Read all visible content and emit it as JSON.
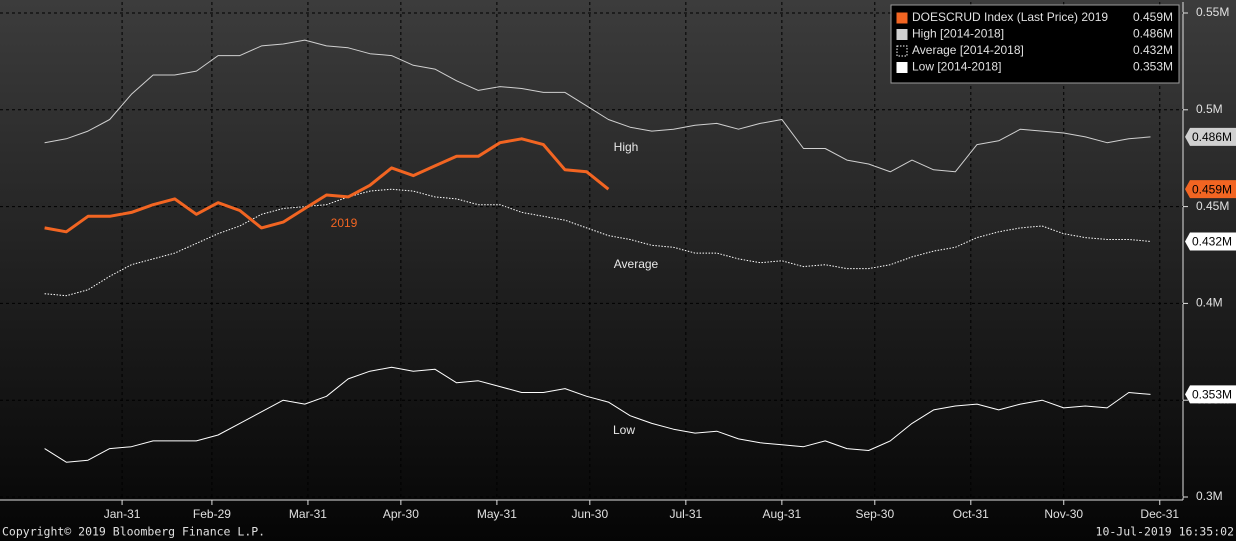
{
  "chart_data": {
    "type": "line",
    "x": [
      6,
      13,
      20,
      27,
      34,
      41,
      48,
      55,
      62,
      69,
      76,
      83,
      90,
      97,
      104,
      111,
      118,
      125,
      132,
      139,
      146,
      153,
      160,
      167,
      174,
      181,
      188,
      195,
      202,
      209,
      216,
      223,
      230,
      237,
      244,
      251,
      258,
      265,
      272,
      279,
      286,
      293,
      300,
      307,
      314,
      321,
      328,
      335,
      342,
      349,
      356,
      363
    ],
    "xlim": [
      4.5,
      373.5
    ],
    "xticks": [
      {
        "value": 31,
        "label": "Jan-31"
      },
      {
        "value": 60,
        "label": "Feb-29"
      },
      {
        "value": 91,
        "label": "Mar-31"
      },
      {
        "value": 121,
        "label": "Apr-30"
      },
      {
        "value": 152,
        "label": "May-31"
      },
      {
        "value": 182,
        "label": "Jun-30"
      },
      {
        "value": 213,
        "label": "Jul-31"
      },
      {
        "value": 244,
        "label": "Aug-31"
      },
      {
        "value": 274,
        "label": "Sep-30"
      },
      {
        "value": 305,
        "label": "Oct-31"
      },
      {
        "value": 335,
        "label": "Nov-30"
      },
      {
        "value": 366,
        "label": "Dec-31"
      }
    ],
    "ylim": [
      0.3,
      0.55
    ],
    "yticks": [
      {
        "value": 0.3,
        "label": "0.3M"
      },
      {
        "value": 0.35,
        "label": "0.35M"
      },
      {
        "value": 0.4,
        "label": "0.4M"
      },
      {
        "value": 0.45,
        "label": "0.45M"
      },
      {
        "value": 0.5,
        "label": "0.5M"
      },
      {
        "value": 0.55,
        "label": "0.55M"
      }
    ],
    "grid": true,
    "legend": "upper right",
    "series": [
      {
        "name": "DOESCRUD Index (Last Price) 2019",
        "color": "#f26522",
        "style": "solid",
        "last_label": "0.459M",
        "values": [
          0.439,
          0.437,
          0.445,
          0.445,
          0.447,
          0.451,
          0.454,
          0.446,
          0.452,
          0.448,
          0.439,
          0.442,
          0.449,
          0.456,
          0.455,
          0.461,
          0.47,
          0.466,
          0.471,
          0.476,
          0.476,
          0.483,
          0.485,
          0.482,
          0.469,
          0.468,
          0.459,
          null,
          null,
          null,
          null,
          null,
          null,
          null,
          null,
          null,
          null,
          null,
          null,
          null,
          null,
          null,
          null,
          null,
          null,
          null,
          null,
          null,
          null,
          null,
          null,
          null
        ]
      },
      {
        "name": "High [2014-2018]",
        "color": "#d0d0d0",
        "style": "solid",
        "last_label": "0.486M",
        "values": [
          0.483,
          0.485,
          0.489,
          0.495,
          0.508,
          0.518,
          0.518,
          0.52,
          0.528,
          0.528,
          0.533,
          0.534,
          0.536,
          0.533,
          0.532,
          0.529,
          0.528,
          0.523,
          0.521,
          0.515,
          0.51,
          0.512,
          0.511,
          0.509,
          0.509,
          0.502,
          0.495,
          0.491,
          0.489,
          0.49,
          0.492,
          0.493,
          0.49,
          0.493,
          0.495,
          0.48,
          0.48,
          0.474,
          0.472,
          0.468,
          0.474,
          0.469,
          0.468,
          0.482,
          0.484,
          0.49,
          0.489,
          0.488,
          0.486,
          0.483,
          0.485,
          0.486
        ]
      },
      {
        "name": "Average [2014-2018]",
        "color": "#ffffff",
        "style": "dotted",
        "last_label": "0.432M",
        "values": [
          0.405,
          0.404,
          0.407,
          0.414,
          0.42,
          0.423,
          0.426,
          0.431,
          0.436,
          0.44,
          0.446,
          0.449,
          0.45,
          0.451,
          0.455,
          0.458,
          0.459,
          0.458,
          0.455,
          0.454,
          0.451,
          0.451,
          0.447,
          0.445,
          0.443,
          0.439,
          0.435,
          0.433,
          0.43,
          0.429,
          0.426,
          0.426,
          0.423,
          0.421,
          0.422,
          0.419,
          0.42,
          0.418,
          0.418,
          0.42,
          0.424,
          0.427,
          0.429,
          0.434,
          0.437,
          0.439,
          0.44,
          0.436,
          0.434,
          0.433,
          0.433,
          0.432
        ]
      },
      {
        "name": "Low [2014-2018]",
        "color": "#ffffff",
        "style": "solid",
        "last_label": "0.353M",
        "values": [
          0.325,
          0.318,
          0.319,
          0.325,
          0.326,
          0.329,
          0.329,
          0.329,
          0.332,
          0.338,
          0.344,
          0.35,
          0.348,
          0.352,
          0.361,
          0.365,
          0.367,
          0.365,
          0.366,
          0.359,
          0.36,
          0.357,
          0.354,
          0.354,
          0.356,
          0.352,
          0.349,
          0.342,
          0.338,
          0.335,
          0.333,
          0.334,
          0.33,
          0.328,
          0.327,
          0.326,
          0.329,
          0.325,
          0.324,
          0.329,
          0.338,
          0.345,
          0.347,
          0.348,
          0.345,
          0.348,
          0.35,
          0.346,
          0.347,
          0.346,
          0.354,
          0.353
        ]
      }
    ],
    "annotations": [
      "2019",
      "High",
      "Average",
      "Low"
    ],
    "footer": {
      "copyright": "Copyright© 2019 Bloomberg Finance L.P.",
      "timestamp": "10-Jul-2019 16:35:02"
    }
  }
}
